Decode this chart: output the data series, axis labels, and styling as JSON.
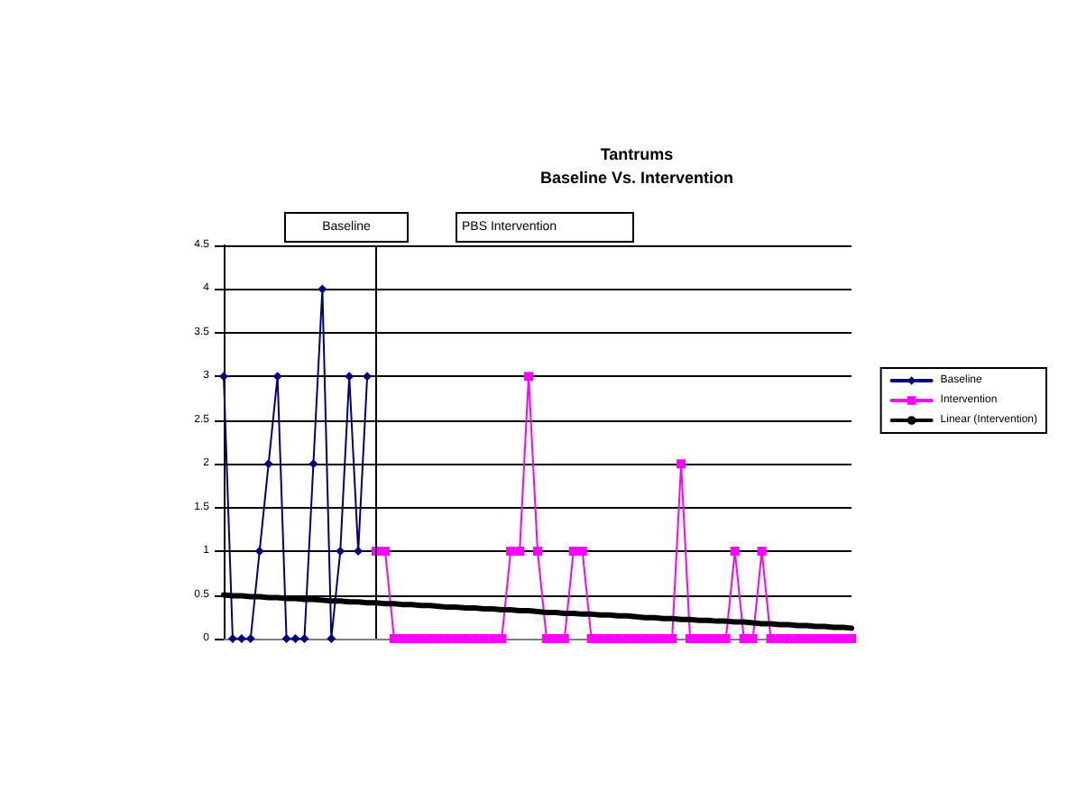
{
  "chart_data": {
    "type": "line",
    "title": "Tantrums",
    "subtitle": "Baseline Vs. Intervention",
    "categories": [
      null,
      null,
      null,
      null,
      null,
      null,
      null,
      null,
      null,
      null,
      null,
      null,
      null,
      null,
      null,
      null,
      null,
      null,
      null,
      null,
      null,
      null,
      null,
      null,
      null,
      null,
      null,
      null,
      null,
      null,
      null,
      null,
      null,
      null,
      null,
      null,
      null,
      null,
      null,
      null,
      null,
      null,
      null,
      null,
      null,
      null,
      null,
      null,
      null,
      null,
      null,
      null,
      null,
      null,
      null,
      null,
      null,
      null,
      null,
      null,
      null,
      null,
      null,
      null,
      null,
      null,
      null,
      null,
      null,
      null,
      null
    ],
    "series": [
      {
        "name": "Baseline",
        "color": "#000080",
        "marker": "diamond",
        "values": [
          3,
          0,
          0,
          0,
          1,
          2,
          3,
          0,
          0,
          0,
          2,
          4,
          0,
          1,
          3,
          1,
          3,
          null,
          null,
          null,
          null,
          null,
          null,
          null,
          null,
          null,
          null,
          null,
          null,
          null,
          null,
          null,
          null,
          null,
          null,
          null,
          null,
          null,
          null,
          null,
          null,
          null,
          null,
          null,
          null,
          null,
          null,
          null,
          null,
          null,
          null,
          null,
          null,
          null,
          null,
          null,
          null,
          null,
          null,
          null,
          null,
          null,
          null,
          null,
          null,
          null,
          null,
          null,
          null,
          null,
          null
        ]
      },
      {
        "name": "Intervention",
        "color": "#ff00ff",
        "marker": "square",
        "values": [
          null,
          null,
          null,
          null,
          null,
          null,
          null,
          null,
          null,
          null,
          null,
          null,
          null,
          null,
          null,
          null,
          null,
          1,
          1,
          0,
          0,
          0,
          0,
          0,
          0,
          0,
          0,
          0,
          0,
          0,
          0,
          0,
          1,
          1,
          3,
          1,
          0,
          0,
          0,
          1,
          1,
          0,
          0,
          0,
          0,
          0,
          0,
          0,
          0,
          0,
          0,
          2,
          0,
          0,
          0,
          0,
          0,
          1,
          0,
          0,
          1,
          0,
          0,
          0,
          0,
          0,
          0,
          0,
          0,
          0,
          0
        ]
      },
      {
        "name": "Linear (Intervention)",
        "color": "#000000",
        "marker": "none",
        "values": [
          0.5,
          0.49,
          0.49,
          0.48,
          0.48,
          0.47,
          0.47,
          0.46,
          0.46,
          0.45,
          0.45,
          0.44,
          0.43,
          0.43,
          0.42,
          0.42,
          0.41,
          0.41,
          0.4,
          0.4,
          0.39,
          0.39,
          0.38,
          0.38,
          0.37,
          0.36,
          0.36,
          0.35,
          0.35,
          0.34,
          0.34,
          0.33,
          0.33,
          0.32,
          0.32,
          0.31,
          0.3,
          0.3,
          0.29,
          0.29,
          0.28,
          0.28,
          0.27,
          0.27,
          0.26,
          0.26,
          0.25,
          0.24,
          0.24,
          0.23,
          0.23,
          0.22,
          0.22,
          0.21,
          0.21,
          0.2,
          0.2,
          0.19,
          0.19,
          0.18,
          0.17,
          0.17,
          0.16,
          0.16,
          0.15,
          0.15,
          0.14,
          0.14,
          0.13,
          0.13,
          0.12
        ]
      }
    ],
    "ylim": [
      0,
      4.5
    ],
    "yticks": [
      0,
      0.5,
      1,
      1.5,
      2,
      2.5,
      3,
      3.5,
      4,
      4.5
    ],
    "grid": "y",
    "legend": "right",
    "annotations": [
      "Baseline",
      "PBS Intervention"
    ]
  }
}
